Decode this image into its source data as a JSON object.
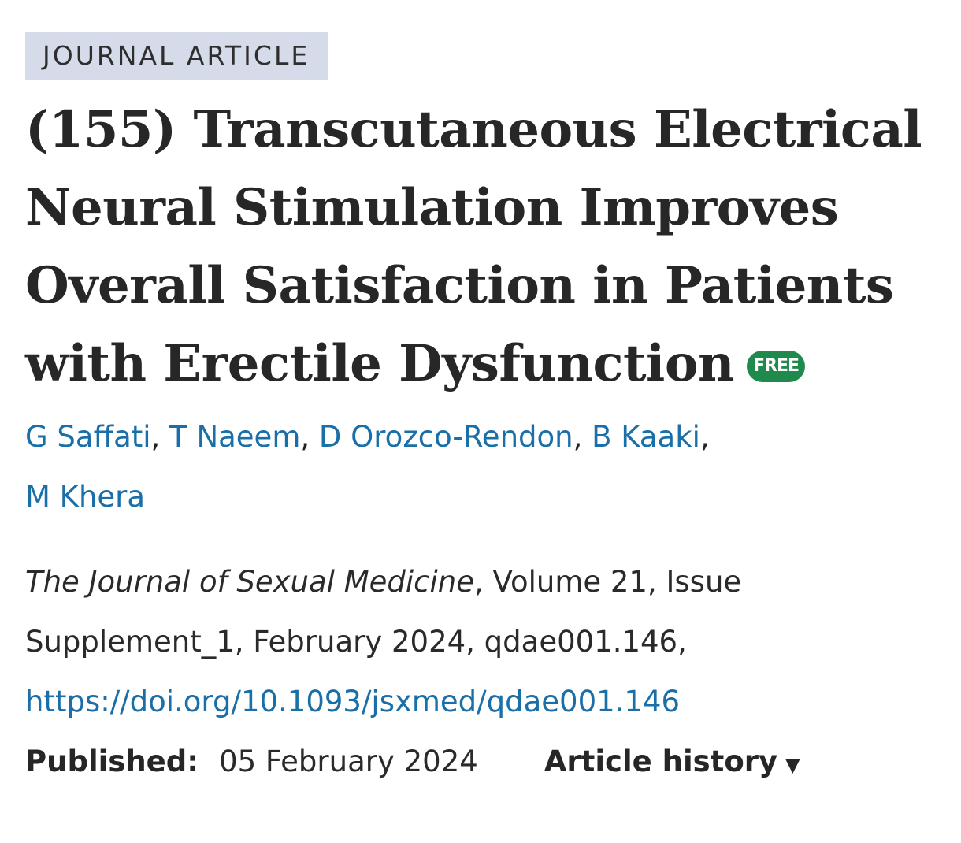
{
  "article_type": "JOURNAL ARTICLE",
  "title": "(155) Transcutaneous Electrical Neural Stimulation Improves Overall Satisfaction in Patients with Erectile Dysfunction",
  "free_badge": "FREE",
  "authors": [
    "G Saffati",
    "T Naeem",
    "D Orozco-Rendon",
    "B Kaaki",
    "M Khera"
  ],
  "author_separator": ", ",
  "citation": {
    "journal": "The Journal of Sexual Medicine",
    "details": ", Volume 21, Issue Supplement_1, February 2024, qdae001.146,",
    "doi": "https://doi.org/10.1093/jsxmed/qdae001.146"
  },
  "published": {
    "label": "Published:",
    "date": "05 February 2024"
  },
  "article_history": {
    "label": "Article history",
    "caret": "▼"
  }
}
